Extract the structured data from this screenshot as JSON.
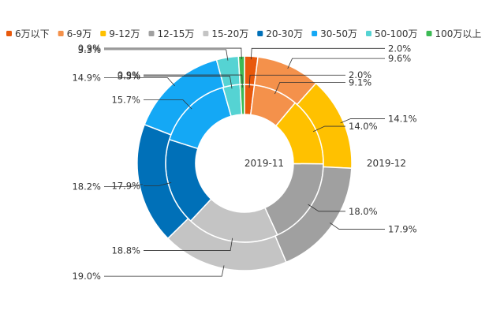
{
  "chart_data": {
    "type": "pie",
    "subtype": "nested-donut",
    "legend_position": "top",
    "categories": [
      "6万以下",
      "6-9万",
      "9-12万",
      "12-15万",
      "15-20万",
      "20-30万",
      "30-50万",
      "50-100万",
      "100万以上"
    ],
    "colors": [
      "#e8590c",
      "#f4914b",
      "#ffc100",
      "#a0a0a0",
      "#c4c4c4",
      "#0070b8",
      "#14a8f5",
      "#55d3d3",
      "#3cba54"
    ],
    "series": [
      {
        "name": "2019-11",
        "ring": "inner",
        "values": [
          2.0,
          9.1,
          14.0,
          18.0,
          18.8,
          17.9,
          15.7,
          3.5,
          0.9
        ],
        "labels": [
          "2.0%",
          "9.1%",
          "14.0%",
          "18.0%",
          "18.8%",
          "17.9%",
          "15.7%",
          "3.5%",
          "0.9%"
        ]
      },
      {
        "name": "2019-12",
        "ring": "outer",
        "values": [
          2.0,
          9.6,
          14.1,
          17.9,
          19.0,
          18.2,
          14.9,
          3.3,
          0.9
        ],
        "labels": [
          "2.0%",
          "9.6%",
          "14.1%",
          "17.9%",
          "19.0%",
          "18.2%",
          "14.9%",
          "3.3%",
          "0.9%"
        ]
      }
    ]
  }
}
